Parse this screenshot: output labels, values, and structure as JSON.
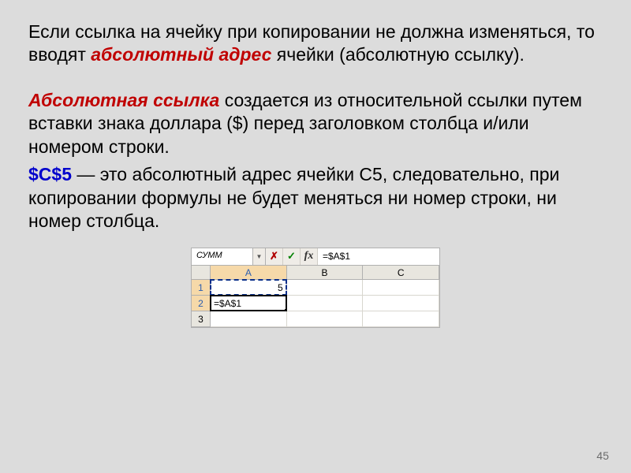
{
  "para1": {
    "pre": "Если ссылка на ячейку при копировании не должна изменяться, то вводят ",
    "emph": "абсолютный адрес",
    "post": " ячейки (абсолютную ссылку)."
  },
  "para2": {
    "emph": "Абсолютная ссылка",
    "post": " создается из относительной ссылки путем вставки знака доллара ($) перед заголовком столбца и/или номером строки."
  },
  "para3": {
    "emph": "$C$5",
    "post": " — это абсолютный адрес ячейки С5, следовательно, при копировании формулы не будет меняться ни номер строки, ни номер столбца."
  },
  "excel": {
    "namebox": "СУММ",
    "cancel_glyph": "✗",
    "enter_glyph": "✓",
    "fx_glyph": "fx",
    "formula": "=$A$1",
    "dropdown_glyph": "▼",
    "columns": [
      "A",
      "B",
      "C"
    ],
    "rows": [
      "1",
      "2",
      "3"
    ],
    "cell_a1": "5",
    "cell_a2": "=$A$1"
  },
  "page_number": "45"
}
